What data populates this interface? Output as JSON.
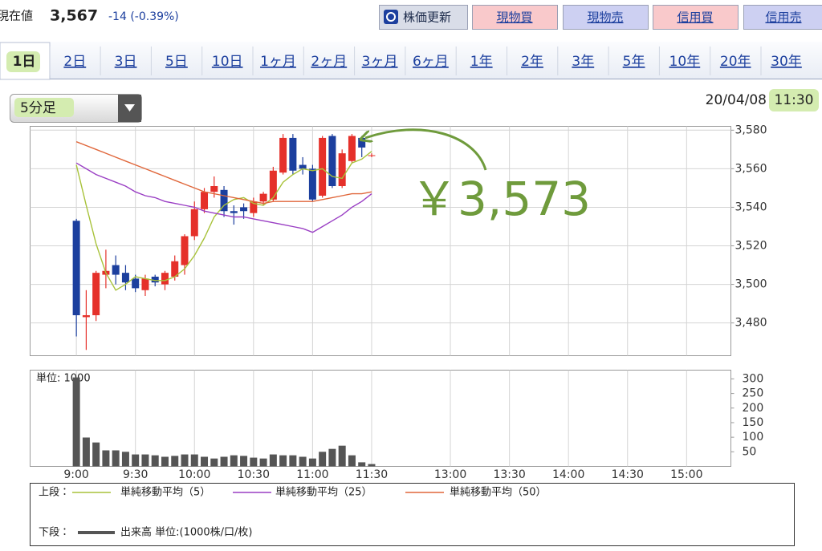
{
  "header": {
    "label": "現在値",
    "price": "3,567",
    "change": "-14 (-0.39%)",
    "buttons": [
      "株価更新",
      "現物買",
      "現物売",
      "信用買",
      "信用売"
    ]
  },
  "tabs": [
    "1日",
    "2日",
    "3日",
    "5日",
    "10日",
    "1ヶ月",
    "2ヶ月",
    "3ヶ月",
    "6ヶ月",
    "1年",
    "2年",
    "3年",
    "5年",
    "10年",
    "20年",
    "30年"
  ],
  "selector": "5分足",
  "timestamp": {
    "date": "20/04/08",
    "time": "11:30"
  },
  "annotation": "￥3,573",
  "legend": {
    "upper": "上段：",
    "lower": "下段："
  },
  "chart_data": [
    {
      "type": "candlestick",
      "x": [
        "9:00",
        "9:05",
        "9:10",
        "9:15",
        "9:20",
        "9:25",
        "9:30",
        "9:35",
        "9:40",
        "9:45",
        "9:50",
        "9:55",
        "10:00",
        "10:05",
        "10:10",
        "10:15",
        "10:20",
        "10:25",
        "10:30",
        "10:35",
        "10:40",
        "10:45",
        "10:50",
        "10:55",
        "11:00",
        "11:05",
        "11:10",
        "11:15",
        "11:20",
        "11:25",
        "11:30"
      ],
      "open": [
        3533,
        3483,
        3484,
        3505,
        3510,
        3506,
        3503,
        3497,
        3504,
        3500,
        3504,
        3510,
        3525,
        3539,
        3548,
        3549,
        3538,
        3540,
        3537,
        3543,
        3544,
        3558,
        3576,
        3562,
        3560,
        3546,
        3577,
        3551,
        3564,
        3576,
        3567
      ],
      "high": [
        3534,
        3497,
        3507,
        3518,
        3515,
        3510,
        3505,
        3505,
        3505,
        3507,
        3515,
        3526,
        3543,
        3550,
        3556,
        3551,
        3541,
        3542,
        3545,
        3548,
        3561,
        3578,
        3578,
        3566,
        3562,
        3577,
        3578,
        3570,
        3578,
        3577,
        3568
      ],
      "low": [
        3473,
        3466,
        3481,
        3498,
        3500,
        3497,
        3496,
        3494,
        3499,
        3497,
        3502,
        3505,
        3523,
        3537,
        3545,
        3535,
        3531,
        3534,
        3535,
        3541,
        3543,
        3557,
        3557,
        3557,
        3543,
        3545,
        3550,
        3550,
        3563,
        3566,
        3566
      ],
      "close": [
        3484,
        3484,
        3506,
        3507,
        3505,
        3501,
        3498,
        3503,
        3501,
        3506,
        3512,
        3525,
        3539,
        3548,
        3551,
        3538,
        3537,
        3538,
        3543,
        3547,
        3559,
        3576,
        3559,
        3560,
        3544,
        3576,
        3551,
        3568,
        3577,
        3571,
        3567
      ],
      "up_color": "#e5302a",
      "down_color": "#1c3f9e",
      "series": [
        {
          "name": "単純移動平均（5）",
          "color": "#a8c23a",
          "values": [
            3562,
            3541,
            3521,
            3506,
            3497,
            3500,
            3504,
            3503,
            3502,
            3502,
            3504,
            3508,
            3515,
            3524,
            3535,
            3541,
            3544,
            3545,
            3542,
            3541,
            3545,
            3553,
            3557,
            3560,
            3559,
            3560,
            3556,
            3555,
            3563,
            3565,
            3569
          ]
        },
        {
          "name": "単純移動平均（25）",
          "color": "#9a3fc4",
          "values": [
            3563,
            3560,
            3557,
            3555,
            3553,
            3551,
            3548,
            3546,
            3545,
            3543,
            3542,
            3541,
            3540,
            3538,
            3537,
            3536,
            3535,
            3535,
            3534,
            3533,
            3532,
            3531,
            3530,
            3529,
            3527,
            3530,
            3533,
            3536,
            3540,
            3543,
            3547
          ]
        },
        {
          "name": "単純移動平均（50）",
          "color": "#e0663a",
          "values": [
            3574,
            3572,
            3570,
            3568,
            3566,
            3564,
            3562,
            3560,
            3558,
            3556,
            3554,
            3552,
            3550,
            3548,
            3547,
            3546,
            3545,
            3544,
            3543,
            3542,
            3543,
            3543,
            3543,
            3543,
            3543,
            3544,
            3545,
            3546,
            3547,
            3547,
            3548
          ]
        }
      ],
      "xlim": [
        -4.7,
        66.5
      ],
      "xticks": [
        {
          "value": 0,
          "label": "9:00"
        },
        {
          "value": 6,
          "label": "9:30"
        },
        {
          "value": 12,
          "label": "10:00"
        },
        {
          "value": 18,
          "label": "10:30"
        },
        {
          "value": 24,
          "label": "11:00"
        },
        {
          "value": 30,
          "label": "11:30"
        },
        {
          "value": 38,
          "label": "13:00"
        },
        {
          "value": 44,
          "label": "13:30"
        },
        {
          "value": 50,
          "label": "14:00"
        },
        {
          "value": 56,
          "label": "14:30"
        },
        {
          "value": 62,
          "label": "15:00"
        }
      ],
      "ylim": [
        3463,
        3582
      ],
      "yticks": [
        {
          "value": 3480,
          "label": "3,480"
        },
        {
          "value": 3500,
          "label": "3,500"
        },
        {
          "value": 3520,
          "label": "3,520"
        },
        {
          "value": 3540,
          "label": "3,540"
        },
        {
          "value": 3560,
          "label": "3,560"
        },
        {
          "value": 3580,
          "label": "3,580"
        }
      ],
      "grid": true
    },
    {
      "type": "bar",
      "unit_label": "単位: 1000",
      "series": [
        {
          "name": "出来高 単位:(1000株/口/枚)",
          "color": "#555555",
          "values": [
            305,
            99,
            82,
            55,
            55,
            50,
            41,
            41,
            38,
            33,
            36,
            41,
            41,
            33,
            27,
            33,
            38,
            36,
            30,
            27,
            41,
            38,
            38,
            33,
            27,
            50,
            60,
            71,
            38,
            14,
            8
          ]
        }
      ],
      "ylim": [
        0,
        330
      ],
      "yticks": [
        50,
        100,
        150,
        200,
        250,
        300
      ]
    }
  ]
}
